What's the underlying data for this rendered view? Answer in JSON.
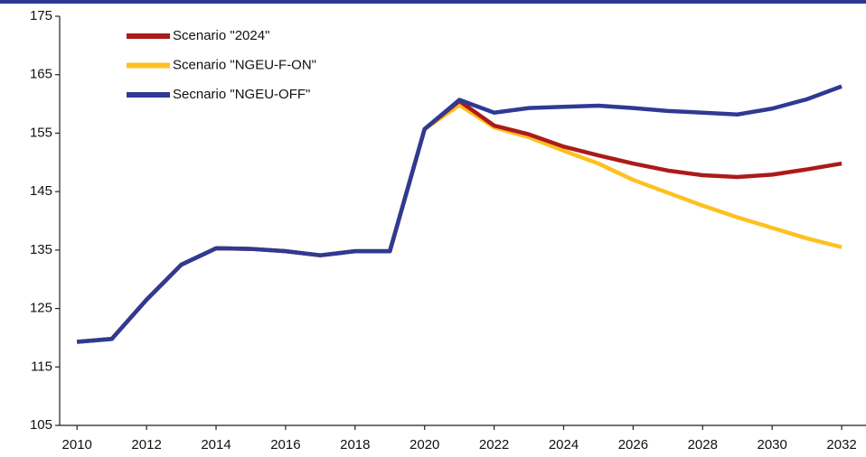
{
  "chart_data": {
    "type": "line",
    "x": [
      2010,
      2011,
      2012,
      2013,
      2014,
      2015,
      2016,
      2017,
      2018,
      2019,
      2020,
      2021,
      2022,
      2023,
      2024,
      2025,
      2026,
      2027,
      2028,
      2029,
      2030,
      2031,
      2032
    ],
    "series": [
      {
        "name": "Scenario \"2024\"",
        "color": "#ac1a1a",
        "values": [
          119.3,
          119.8,
          126.5,
          132.5,
          135.3,
          135.2,
          134.8,
          134.1,
          134.8,
          134.8,
          155.7,
          160.5,
          156.3,
          154.8,
          152.7,
          151.2,
          149.8,
          148.6,
          147.8,
          147.5,
          147.9,
          148.8,
          149.8
        ]
      },
      {
        "name": "Scenario \"NGEU-F-ON\"",
        "color": "#ffc020",
        "values": [
          119.3,
          119.8,
          126.5,
          132.5,
          135.3,
          135.2,
          134.8,
          134.1,
          134.8,
          134.8,
          155.7,
          159.8,
          156.0,
          154.3,
          152.0,
          149.8,
          147.0,
          144.8,
          142.6,
          140.6,
          138.8,
          137.0,
          135.5
        ]
      },
      {
        "name": "Secnario \"NGEU-OFF\"",
        "color": "#2e3a94",
        "values": [
          119.3,
          119.8,
          126.5,
          132.5,
          135.3,
          135.2,
          134.8,
          134.1,
          134.8,
          134.8,
          155.7,
          160.7,
          158.5,
          159.3,
          159.5,
          159.7,
          159.3,
          158.8,
          158.5,
          158.2,
          159.2,
          160.8,
          163.0
        ]
      }
    ],
    "xlim": [
      2009.5,
      2032.7
    ],
    "xticks": [
      2010,
      2012,
      2014,
      2016,
      2018,
      2020,
      2022,
      2024,
      2026,
      2028,
      2030,
      2032
    ],
    "ylim": [
      105,
      175
    ],
    "yticks": [
      105,
      115,
      125,
      135,
      145,
      155,
      165,
      175
    ],
    "legend": "upper left",
    "grid": false
  }
}
